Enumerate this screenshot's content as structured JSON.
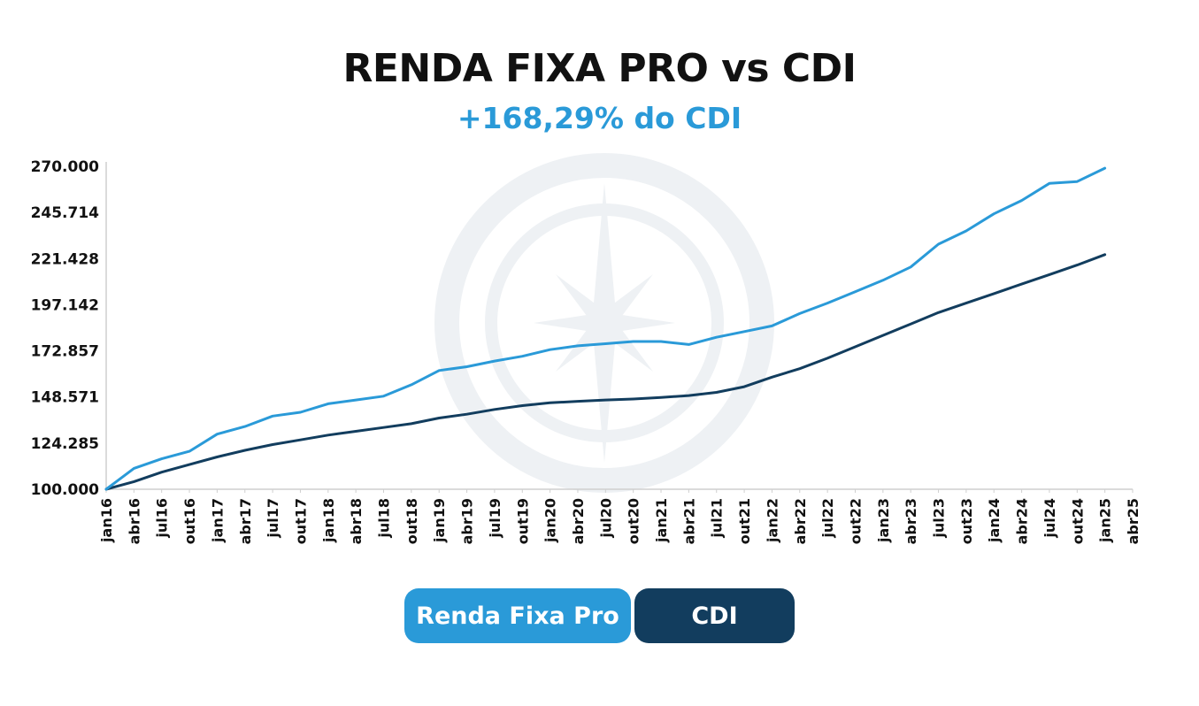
{
  "header": {
    "title": "RENDA FIXA PRO vs CDI",
    "subtitle": "+168,29% do CDI"
  },
  "colors": {
    "renda_fixa_pro": "#2a9ad8",
    "cdi": "#123d5e",
    "axis": "#cfcfcf",
    "watermark": "#eef1f4"
  },
  "legend": {
    "renda_fixa_pro": "Renda Fixa Pro",
    "cdi": "CDI"
  },
  "watermark": "compass-logo",
  "chart_data": {
    "type": "line",
    "title": "RENDA FIXA PRO vs CDI",
    "subtitle": "+168,29% do CDI",
    "xlabel": "",
    "ylabel": "",
    "ylim": [
      100000,
      270000
    ],
    "y_ticks": [
      "100.000",
      "124.285",
      "148.571",
      "172.857",
      "197.142",
      "221.428",
      "245.714",
      "270.000"
    ],
    "x_ticks": [
      "jan16",
      "abr16",
      "jul16",
      "out16",
      "jan17",
      "abr17",
      "jul17",
      "out17",
      "jan18",
      "abr18",
      "jul18",
      "out18",
      "jan19",
      "abr19",
      "jul19",
      "out19",
      "jan20",
      "abr20",
      "jul20",
      "out20",
      "jan21",
      "abr21",
      "jul21",
      "out21",
      "jan22",
      "abr22",
      "jul22",
      "out22",
      "jan23",
      "abr23",
      "jul23",
      "out23",
      "jan24",
      "abr24",
      "jul24",
      "out24",
      "jan25",
      "abr25"
    ],
    "x_range": [
      "2016-01",
      "2025-04"
    ],
    "grid": false,
    "legend_position": "bottom-center",
    "series": [
      {
        "name": "Renda Fixa Pro",
        "color": "#2a9ad8",
        "points": [
          [
            "2016-01",
            100000
          ],
          [
            "2016-04",
            111000
          ],
          [
            "2016-07",
            116000
          ],
          [
            "2016-10",
            120000
          ],
          [
            "2017-01",
            129000
          ],
          [
            "2017-04",
            133000
          ],
          [
            "2017-07",
            138500
          ],
          [
            "2017-10",
            140500
          ],
          [
            "2018-01",
            145000
          ],
          [
            "2018-04",
            147000
          ],
          [
            "2018-07",
            149000
          ],
          [
            "2018-10",
            155000
          ],
          [
            "2019-01",
            162500
          ],
          [
            "2019-04",
            164500
          ],
          [
            "2019-07",
            167500
          ],
          [
            "2019-10",
            170000
          ],
          [
            "2020-01",
            173500
          ],
          [
            "2020-04",
            175500
          ],
          [
            "2020-07",
            176600
          ],
          [
            "2020-10",
            177800
          ],
          [
            "2021-01",
            177800
          ],
          [
            "2021-04",
            176200
          ],
          [
            "2021-07",
            180000
          ],
          [
            "2021-10",
            183000
          ],
          [
            "2022-01",
            186000
          ],
          [
            "2022-04",
            192500
          ],
          [
            "2022-07",
            198000
          ],
          [
            "2022-10",
            204000
          ],
          [
            "2023-01",
            210000
          ],
          [
            "2023-04",
            217000
          ],
          [
            "2023-07",
            229000
          ],
          [
            "2023-10",
            236000
          ],
          [
            "2024-01",
            245000
          ],
          [
            "2024-04",
            252000
          ],
          [
            "2024-07",
            261000
          ],
          [
            "2024-10",
            262000
          ],
          [
            "2025-01",
            269000
          ]
        ]
      },
      {
        "name": "CDI",
        "color": "#123d5e",
        "points": [
          [
            "2016-01",
            100000
          ],
          [
            "2016-04",
            104000
          ],
          [
            "2016-07",
            109000
          ],
          [
            "2016-10",
            113000
          ],
          [
            "2017-01",
            117000
          ],
          [
            "2017-04",
            120500
          ],
          [
            "2017-07",
            123500
          ],
          [
            "2017-10",
            126000
          ],
          [
            "2018-01",
            128500
          ],
          [
            "2018-04",
            130500
          ],
          [
            "2018-07",
            132500
          ],
          [
            "2018-10",
            134500
          ],
          [
            "2019-01",
            137500
          ],
          [
            "2019-04",
            139500
          ],
          [
            "2019-07",
            142000
          ],
          [
            "2019-10",
            144000
          ],
          [
            "2020-01",
            145500
          ],
          [
            "2020-04",
            146300
          ],
          [
            "2020-07",
            147000
          ],
          [
            "2020-10",
            147500
          ],
          [
            "2021-01",
            148300
          ],
          [
            "2021-04",
            149300
          ],
          [
            "2021-07",
            151000
          ],
          [
            "2021-10",
            154000
          ],
          [
            "2022-01",
            159000
          ],
          [
            "2022-04",
            163500
          ],
          [
            "2022-07",
            169000
          ],
          [
            "2022-10",
            175000
          ],
          [
            "2023-01",
            181000
          ],
          [
            "2023-04",
            187000
          ],
          [
            "2023-07",
            193000
          ],
          [
            "2023-10",
            198000
          ],
          [
            "2024-01",
            203000
          ],
          [
            "2024-04",
            208000
          ],
          [
            "2024-07",
            213000
          ],
          [
            "2024-10",
            218000
          ],
          [
            "2025-01",
            223500
          ]
        ]
      }
    ]
  }
}
